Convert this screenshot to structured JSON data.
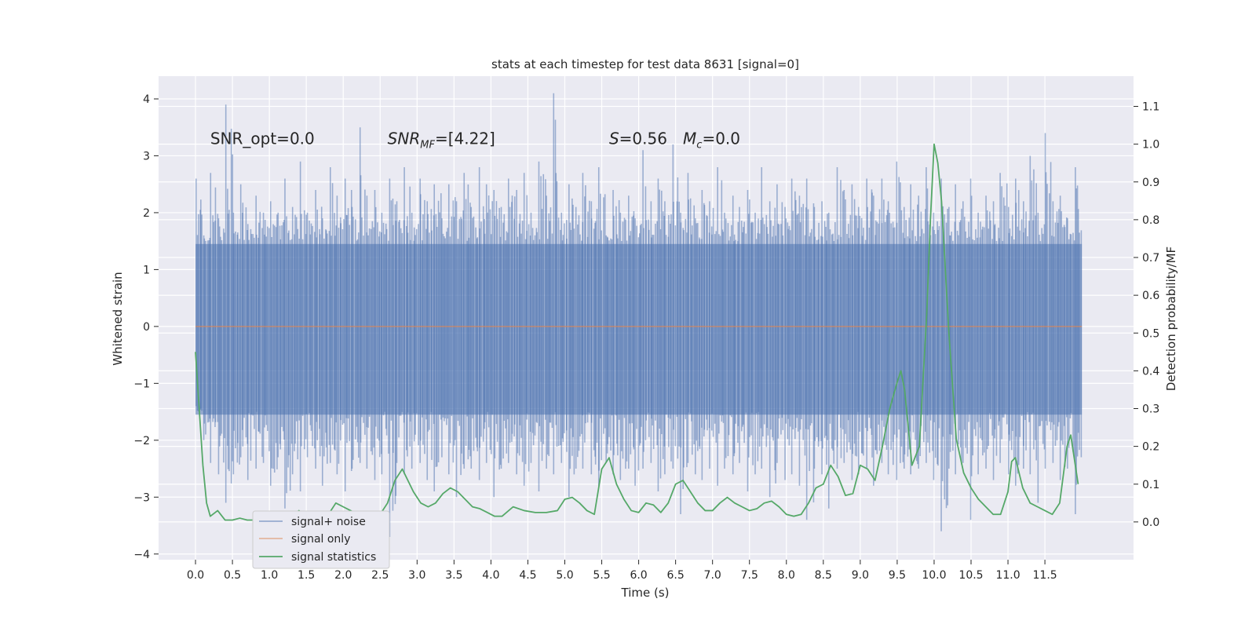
{
  "chart_data": {
    "type": "line",
    "title": "stats at each timestep for test data 8631 [signal=0]",
    "xlabel": "Time (s)",
    "ylabel": "Whitened strain",
    "y2label": "Detection probability/MF",
    "xlim": [
      -0.5,
      12.7
    ],
    "ylim": [
      -4.1,
      4.4
    ],
    "y2lim": [
      -0.1,
      1.18
    ],
    "x_ticks": [
      0.0,
      0.5,
      1.0,
      1.5,
      2.0,
      2.5,
      3.0,
      3.5,
      4.0,
      4.5,
      5.0,
      5.5,
      6.0,
      6.5,
      7.0,
      7.5,
      8.0,
      8.5,
      9.0,
      9.5,
      10.0,
      10.5,
      11.0,
      11.5
    ],
    "x_tick_labels": [
      "0.0",
      "0.5",
      "1.0",
      "1.5",
      "2.0",
      "2.5",
      "3.0",
      "3.5",
      "4.0",
      "4.5",
      "5.0",
      "5.5",
      "6.0",
      "6.5",
      "7.0",
      "7.5",
      "8.0",
      "8.5",
      "9.0",
      "9.5",
      "10.0",
      "10.5",
      "11.0",
      "11.5"
    ],
    "y_ticks": [
      -4,
      -3,
      -2,
      -1,
      0,
      1,
      2,
      3,
      4
    ],
    "y_tick_labels": [
      "−4",
      "−3",
      "−2",
      "−1",
      "0",
      "1",
      "2",
      "3",
      "4"
    ],
    "y2_ticks": [
      0.0,
      0.1,
      0.2,
      0.3,
      0.4,
      0.5,
      0.6,
      0.7,
      0.8,
      0.9,
      1.0,
      1.1
    ],
    "y2_tick_labels": [
      "0.0",
      "0.1",
      "0.2",
      "0.3",
      "0.4",
      "0.5",
      "0.6",
      "0.7",
      "0.8",
      "0.9",
      "1.0",
      "1.1"
    ],
    "grid": true,
    "legend_position": "bottom-left",
    "annotations": [
      {
        "text": "SNR_opt=0.0",
        "x": 0.2,
        "y": 3.3
      },
      {
        "text": "SNR_MF=[4.22]",
        "x": 2.6,
        "y": 3.3
      },
      {
        "text": "S=0.56",
        "x": 5.6,
        "y": 3.3
      },
      {
        "text": "M_c=0.0",
        "x": 6.6,
        "y": 3.3
      }
    ],
    "series": [
      {
        "name": "signal+ noise",
        "axis": "left",
        "color": "#4c72b0",
        "t_range": [
          0.0,
          12.0
        ],
        "envelope_upper": [
          2.6,
          1.6,
          2.7,
          1.9,
          3.9,
          2.0,
          2.5,
          1.8,
          2.3,
          2.0,
          2.2,
          2.0,
          2.6,
          2.1,
          2.9,
          2.0,
          2.4,
          1.9,
          2.8,
          2.3,
          2.6,
          2.1,
          3.5,
          2.3,
          2.4,
          2.0,
          2.6,
          2.2,
          2.8,
          2.0,
          2.6,
          2.2,
          2.5,
          1.9,
          2.5,
          2.2,
          2.7,
          2.1,
          2.8,
          2.5,
          2.4,
          2.1,
          2.6,
          2.4,
          2.7,
          2.0,
          2.9,
          2.3,
          4.1,
          2.0,
          2.5,
          2.1,
          2.7,
          2.2,
          2.8,
          1.6,
          2.4,
          2.0,
          2.3,
          1.9,
          3.1,
          2.2,
          2.6,
          2.2,
          3.2,
          2.0,
          2.7,
          1.9,
          2.4,
          2.2,
          2.8,
          2.0,
          2.3,
          2.1,
          2.4,
          2.0,
          2.8,
          2.2,
          2.5,
          2.1,
          2.6,
          2.3,
          2.6,
          2.1,
          2.2,
          2.0,
          2.8,
          2.4,
          2.5,
          2.1,
          2.6,
          2.3,
          2.6,
          2.2,
          2.9,
          2.1,
          2.5,
          2.3,
          2.8,
          2.0,
          2.6,
          2.1,
          2.5,
          2.2,
          2.6,
          2.0,
          2.3,
          2.2,
          2.7,
          2.1,
          2.6,
          2.2,
          3.0,
          2.0,
          3.4,
          2.2,
          2.3,
          1.9,
          2.8,
          2.0
        ],
        "envelope_lower": [
          -1.4,
          -2.0,
          -2.4,
          -2.6,
          -3.1,
          -2.6,
          -2.3,
          -2.7,
          -2.5,
          -2.4,
          -2.8,
          -2.3,
          -3.2,
          -2.6,
          -2.9,
          -2.3,
          -2.5,
          -2.8,
          -2.4,
          -2.6,
          -2.9,
          -2.5,
          -2.4,
          -2.5,
          -2.7,
          -2.6,
          -3.7,
          -2.4,
          -2.6,
          -2.5,
          -2.4,
          -2.7,
          -2.9,
          -2.3,
          -2.6,
          -3.0,
          -2.5,
          -2.5,
          -2.7,
          -2.4,
          -3.0,
          -2.5,
          -2.4,
          -2.6,
          -2.8,
          -2.4,
          -2.9,
          -2.5,
          -2.6,
          -2.4,
          -3.0,
          -2.5,
          -2.5,
          -2.6,
          -2.8,
          -2.4,
          -2.6,
          -2.7,
          -2.5,
          -2.8,
          -2.5,
          -2.4,
          -2.9,
          -2.6,
          -2.5,
          -3.3,
          -2.4,
          -2.6,
          -2.7,
          -2.5,
          -2.8,
          -2.5,
          -2.6,
          -2.4,
          -2.9,
          -2.6,
          -2.5,
          -3.0,
          -2.4,
          -2.7,
          -2.6,
          -2.8,
          -3.4,
          -2.5,
          -2.6,
          -3.2,
          -2.5,
          -2.4,
          -2.7,
          -2.6,
          -2.5,
          -2.8,
          -2.4,
          -2.6,
          -2.7,
          -2.5,
          -2.6,
          -2.5,
          -2.4,
          -2.7,
          -3.6,
          -2.5,
          -2.6,
          -2.4,
          -3.4,
          -2.6,
          -2.5,
          -2.7,
          -2.4,
          -2.6,
          -2.8,
          -2.5,
          -2.6,
          -3.1,
          -2.5,
          -2.4,
          -2.7,
          -2.5,
          -3.3,
          -2.0
        ]
      },
      {
        "name": "signal only",
        "axis": "left",
        "color": "#dd8452",
        "x": [
          0.0,
          12.0
        ],
        "y": [
          0.0,
          0.0
        ]
      },
      {
        "name": "signal statistics",
        "axis": "right",
        "color": "#55a868",
        "x": [
          0.0,
          0.05,
          0.1,
          0.15,
          0.2,
          0.3,
          0.4,
          0.5,
          0.6,
          0.7,
          0.8,
          0.9,
          1.0,
          1.1,
          1.2,
          1.3,
          1.4,
          1.5,
          1.6,
          1.7,
          1.8,
          1.9,
          2.0,
          2.1,
          2.2,
          2.3,
          2.4,
          2.5,
          2.6,
          2.7,
          2.8,
          2.85,
          2.95,
          3.05,
          3.15,
          3.25,
          3.35,
          3.45,
          3.55,
          3.65,
          3.75,
          3.85,
          3.95,
          4.05,
          4.15,
          4.3,
          4.45,
          4.6,
          4.75,
          4.9,
          5.0,
          5.1,
          5.2,
          5.3,
          5.4,
          5.5,
          5.6,
          5.7,
          5.8,
          5.9,
          6.0,
          6.1,
          6.2,
          6.3,
          6.4,
          6.5,
          6.6,
          6.7,
          6.8,
          6.9,
          7.0,
          7.1,
          7.2,
          7.3,
          7.4,
          7.5,
          7.6,
          7.7,
          7.8,
          7.9,
          8.0,
          8.1,
          8.2,
          8.3,
          8.4,
          8.5,
          8.6,
          8.7,
          8.8,
          8.9,
          9.0,
          9.1,
          9.2,
          9.3,
          9.4,
          9.5,
          9.55,
          9.6,
          9.7,
          9.8,
          9.9,
          9.95,
          10.0,
          10.05,
          10.1,
          10.2,
          10.3,
          10.4,
          10.5,
          10.6,
          10.7,
          10.8,
          10.9,
          11.0,
          11.05,
          11.1,
          11.2,
          11.3,
          11.4,
          11.5,
          11.6,
          11.7,
          11.8,
          11.85,
          11.95
        ],
        "y": [
          0.45,
          0.3,
          0.15,
          0.05,
          0.015,
          0.03,
          0.005,
          0.005,
          0.01,
          0.005,
          0.005,
          0.01,
          0.005,
          0.005,
          0.02,
          0.015,
          0.03,
          0.015,
          0.02,
          0.015,
          0.02,
          0.05,
          0.04,
          0.03,
          0.02,
          0.02,
          0.015,
          0.02,
          0.05,
          0.11,
          0.14,
          0.12,
          0.08,
          0.05,
          0.04,
          0.05,
          0.075,
          0.09,
          0.08,
          0.06,
          0.04,
          0.035,
          0.025,
          0.015,
          0.015,
          0.04,
          0.03,
          0.025,
          0.025,
          0.03,
          0.06,
          0.065,
          0.05,
          0.03,
          0.02,
          0.14,
          0.17,
          0.1,
          0.06,
          0.03,
          0.025,
          0.05,
          0.045,
          0.025,
          0.05,
          0.1,
          0.11,
          0.08,
          0.05,
          0.03,
          0.03,
          0.05,
          0.065,
          0.05,
          0.04,
          0.03,
          0.035,
          0.05,
          0.055,
          0.04,
          0.02,
          0.015,
          0.02,
          0.05,
          0.09,
          0.1,
          0.15,
          0.12,
          0.07,
          0.075,
          0.15,
          0.14,
          0.11,
          0.2,
          0.3,
          0.37,
          0.4,
          0.35,
          0.15,
          0.2,
          0.55,
          0.8,
          1.0,
          0.95,
          0.85,
          0.5,
          0.22,
          0.13,
          0.09,
          0.06,
          0.04,
          0.02,
          0.02,
          0.08,
          0.16,
          0.17,
          0.09,
          0.05,
          0.04,
          0.03,
          0.02,
          0.05,
          0.2,
          0.23,
          0.1
        ]
      }
    ]
  }
}
